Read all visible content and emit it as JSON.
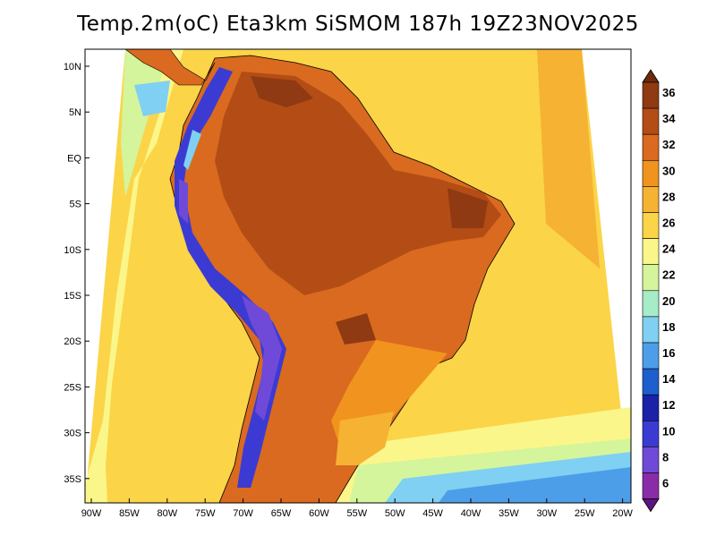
{
  "title": "Temp.2m(oC) Eta3km SiSMOM 187h 19Z23NOV2025",
  "map": {
    "lat_ticks": [
      "10N",
      "5N",
      "EQ",
      "5S",
      "10S",
      "15S",
      "20S",
      "25S",
      "30S",
      "35S"
    ],
    "lon_ticks": [
      "90W",
      "85W",
      "80W",
      "75W",
      "70W",
      "65W",
      "60W",
      "55W",
      "50W",
      "45W",
      "40W",
      "35W",
      "30W",
      "25W",
      "20W"
    ]
  },
  "colorbar": {
    "labels": [
      "36",
      "34",
      "32",
      "30",
      "28",
      "26",
      "24",
      "22",
      "20",
      "18",
      "16",
      "14",
      "12",
      "10",
      "8",
      "6"
    ],
    "colors": [
      "#6e2a0e",
      "#8f3a12",
      "#b34d15",
      "#d96a1f",
      "#f0941f",
      "#f6b233",
      "#fbd448",
      "#fbf68a",
      "#d4f59b",
      "#a7ecc8",
      "#7fd0f2",
      "#4d9ee8",
      "#1e5fcf",
      "#1b22a8",
      "#3b3bd4",
      "#6f4ad8",
      "#8a2ca8",
      "#5c1480"
    ]
  },
  "palette": {
    "ocean_warm": "#fbd448",
    "ocean_mid": "#fbf68a",
    "ocean_cool": "#d4f59b",
    "ocean_cold": "#7fd0f2",
    "ocean_colder": "#4d9ee8",
    "land_hot": "#d96a1f",
    "land_hotter": "#b34d15",
    "land_hottest": "#8f3a12",
    "land_warm": "#f0941f",
    "andes_high": "#3b3bd4",
    "andes_peak": "#6f4ad8"
  }
}
